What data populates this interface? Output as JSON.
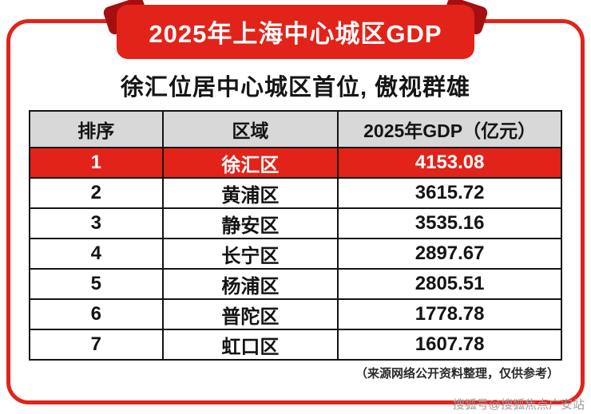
{
  "banner": {
    "title": "2025年上海中心城区GDP"
  },
  "subtitle": "徐汇位居中心城区首位, 傲视群雄",
  "table": {
    "headers": [
      "排序",
      "区域",
      "2025年GDP（亿元）"
    ],
    "rows": [
      {
        "rank": "1",
        "region": "徐汇区",
        "gdp": "4153.08",
        "highlight": true
      },
      {
        "rank": "2",
        "region": "黄浦区",
        "gdp": "3615.72",
        "highlight": false
      },
      {
        "rank": "3",
        "region": "静安区",
        "gdp": "3535.16",
        "highlight": false
      },
      {
        "rank": "4",
        "region": "长宁区",
        "gdp": "2897.67",
        "highlight": false
      },
      {
        "rank": "5",
        "region": "杨浦区",
        "gdp": "2805.51",
        "highlight": false
      },
      {
        "rank": "6",
        "region": "普陀区",
        "gdp": "1778.78",
        "highlight": false
      },
      {
        "rank": "7",
        "region": "虹口区",
        "gdp": "1607.78",
        "highlight": false
      }
    ]
  },
  "source_note": "（来源网络公开资料整理，仅供参考）",
  "watermark": "搜狐号@搜狐焦点广安站",
  "colors": {
    "accent_red": "#e2231a",
    "fold_dark_red": "#a50f0f",
    "header_gray": "#d8d8d8",
    "border_black": "#141414",
    "watermark_gray": "#9b9b9b"
  },
  "chart_data": {
    "type": "table",
    "title": "2025年上海中心城区GDP",
    "subtitle": "徐汇位居中心城区首位, 傲视群雄",
    "columns": [
      "排序",
      "区域",
      "2025年GDP（亿元）"
    ],
    "rows": [
      [
        "1",
        "徐汇区",
        4153.08
      ],
      [
        "2",
        "黄浦区",
        3615.72
      ],
      [
        "3",
        "静安区",
        3535.16
      ],
      [
        "4",
        "长宁区",
        2897.67
      ],
      [
        "5",
        "杨浦区",
        2805.51
      ],
      [
        "6",
        "普陀区",
        1778.78
      ],
      [
        "7",
        "虹口区",
        1607.78
      ]
    ],
    "highlighted_row_index": 0,
    "unit": "亿元",
    "source_note": "（来源网络公开资料整理，仅供参考）"
  }
}
